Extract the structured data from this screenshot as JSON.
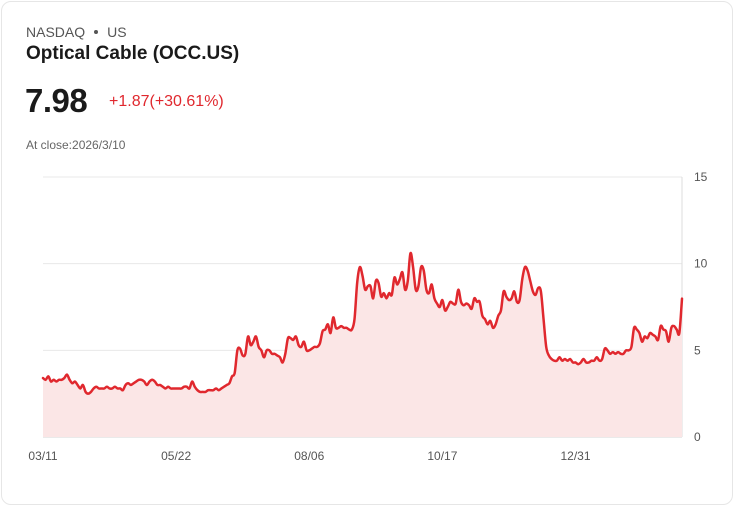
{
  "header": {
    "exchange": "NASDAQ",
    "region": "US",
    "name": "Optical Cable (OCC.US)",
    "price": "7.98",
    "change": "+1.87(+30.61%)",
    "close_label": "At close:",
    "close_date": "2026/3/10"
  },
  "colors": {
    "line": "#e0282e",
    "fill": "#fbe6e6",
    "grid": "#e8e8e8",
    "text": "#1a1a1a",
    "muted": "#666666"
  },
  "chart_data": {
    "type": "area",
    "title": "",
    "xlabel": "",
    "ylabel": "",
    "ylim": [
      0,
      15
    ],
    "yticks": [
      "15",
      "10",
      "5",
      "0"
    ],
    "ytick_values": [
      15,
      10,
      5,
      0
    ],
    "xtick_labels": [
      "03/11",
      "05/22",
      "08/06",
      "10/17",
      "12/31"
    ],
    "xtick_index": [
      0,
      50,
      100,
      150,
      200
    ],
    "y_axis_position": "right",
    "grid": true,
    "series": [
      {
        "name": "OCC.US",
        "values": [
          3.4,
          3.3,
          3.5,
          3.2,
          3.3,
          3.2,
          3.3,
          3.3,
          3.4,
          3.6,
          3.3,
          3.1,
          3.2,
          3.0,
          2.8,
          3.0,
          2.6,
          2.5,
          2.6,
          2.8,
          2.9,
          2.8,
          2.8,
          2.8,
          2.9,
          2.8,
          2.8,
          2.9,
          2.8,
          2.8,
          2.7,
          3.0,
          3.1,
          3.0,
          3.1,
          3.2,
          3.3,
          3.3,
          3.2,
          3.0,
          3.2,
          3.3,
          3.2,
          3.0,
          3.0,
          2.9,
          2.8,
          2.9,
          2.8,
          2.8,
          2.8,
          2.8,
          2.8,
          2.9,
          2.9,
          2.8,
          3.2,
          2.9,
          2.7,
          2.6,
          2.6,
          2.6,
          2.7,
          2.7,
          2.7,
          2.8,
          2.7,
          2.8,
          2.9,
          3.0,
          3.1,
          3.5,
          3.7,
          5.0,
          5.1,
          4.7,
          4.8,
          5.8,
          5.3,
          5.5,
          5.8,
          5.2,
          5.0,
          4.6,
          5.0,
          5.0,
          4.8,
          4.8,
          4.7,
          4.6,
          4.3,
          4.8,
          5.7,
          5.7,
          5.6,
          5.8,
          5.3,
          5.2,
          5.5,
          5.0,
          5.0,
          5.1,
          5.2,
          5.2,
          5.4,
          6.1,
          6.2,
          6.5,
          6.0,
          6.9,
          6.3,
          6.3,
          6.4,
          6.3,
          6.3,
          6.2,
          6.2,
          6.8,
          8.9,
          9.8,
          9.3,
          8.5,
          8.7,
          8.7,
          8.0,
          9.0,
          8.9,
          8.1,
          8.3,
          8.0,
          8.3,
          8.2,
          9.2,
          8.8,
          9.1,
          9.5,
          8.5,
          9.0,
          10.6,
          9.8,
          8.5,
          8.7,
          9.8,
          9.6,
          8.5,
          8.3,
          8.8,
          8.0,
          7.7,
          7.5,
          7.9,
          7.3,
          7.5,
          7.8,
          7.7,
          7.7,
          8.5,
          7.8,
          7.6,
          7.7,
          7.6,
          7.4,
          8.0,
          7.8,
          7.8,
          7.0,
          6.8,
          6.5,
          6.7,
          6.3,
          6.5,
          7.0,
          7.3,
          8.4,
          8.1,
          7.9,
          8.0,
          8.4,
          7.8,
          7.9,
          9.1,
          9.8,
          9.6,
          9.0,
          8.4,
          8.2,
          8.6,
          8.4,
          6.8,
          5.2,
          4.7,
          4.5,
          4.4,
          4.4,
          4.6,
          4.4,
          4.5,
          4.4,
          4.5,
          4.3,
          4.3,
          4.2,
          4.3,
          4.5,
          4.3,
          4.3,
          4.4,
          4.4,
          4.6,
          4.4,
          4.5,
          5.1,
          5.0,
          4.8,
          4.9,
          4.8,
          4.9,
          4.8,
          4.8,
          5.0,
          5.0,
          5.2,
          6.3,
          6.2,
          6.0,
          5.5,
          5.8,
          5.7,
          6.0,
          5.9,
          5.8,
          5.6,
          6.4,
          6.2,
          6.1,
          5.5,
          6.3,
          6.4,
          6.2,
          6.0,
          7.98
        ]
      }
    ]
  }
}
